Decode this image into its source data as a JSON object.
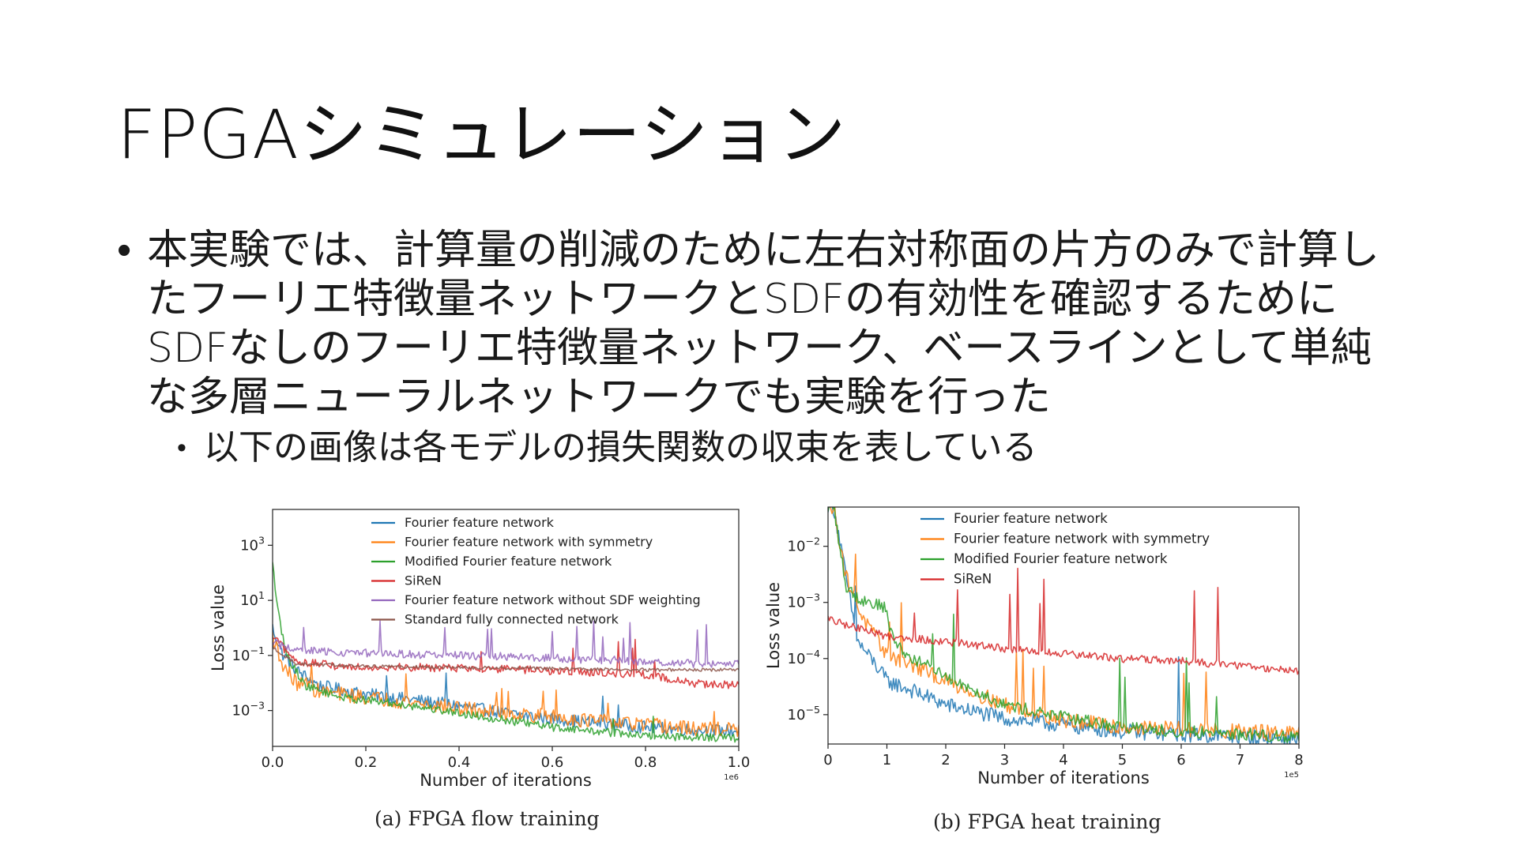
{
  "slide": {
    "title": "FPGAシミュレーション",
    "bullet_main": "本実験では、計算量の削減のために左右対称面の片方のみで計算したフーリエ特徴量ネットワークとSDFの有効性を確認するためにSDFなしのフーリエ特徴量ネットワーク、ベースラインとして単純な多層ニューラルネットワークでも実験を行った",
    "bullet_sub": "以下の画像は各モデルの損失関数の収束を表している",
    "bullet_glyph": "•"
  },
  "chart_data": [
    {
      "type": "line",
      "caption": "(a) FPGA flow training",
      "xlabel": "Number of iterations",
      "ylabel": "Loss value",
      "x_offset_text": "1e6",
      "yscale": "log",
      "xlim": [
        0,
        1.0
      ],
      "ylim": [
        5e-05,
        20000
      ],
      "xticks": [
        0.0,
        0.2,
        0.4,
        0.6,
        0.8,
        1.0
      ],
      "xtick_labels": [
        "0.0",
        "0.2",
        "0.4",
        "0.6",
        "0.8",
        "1.0"
      ],
      "yticks": [
        0.001,
        0.1,
        10,
        1000
      ],
      "ytick_labels": [
        [
          "10",
          "−3"
        ],
        [
          "10",
          "−1"
        ],
        [
          "10",
          "1"
        ],
        [
          "10",
          "3"
        ]
      ],
      "legend_position": "top-right",
      "grid": false,
      "series": [
        {
          "name": "Fourier feature network",
          "color": "#1f77b4",
          "points": [
            [
              0.0,
              1.0
            ],
            [
              0.02,
              0.12
            ],
            [
              0.05,
              0.03
            ],
            [
              0.1,
              0.008
            ],
            [
              0.2,
              0.004
            ],
            [
              0.3,
              0.0025
            ],
            [
              0.4,
              0.0015
            ],
            [
              0.5,
              0.0008
            ],
            [
              0.6,
              0.0005
            ],
            [
              0.7,
              0.00035
            ],
            [
              0.8,
              0.00025
            ],
            [
              0.9,
              0.0002
            ],
            [
              1.0,
              0.00018
            ]
          ],
          "noise": 0.45,
          "spikes": 4
        },
        {
          "name": "Fourier feature network with symmetry",
          "color": "#ff7f0e",
          "points": [
            [
              0.0,
              0.5
            ],
            [
              0.02,
              0.05
            ],
            [
              0.05,
              0.01
            ],
            [
              0.1,
              0.005
            ],
            [
              0.2,
              0.003
            ],
            [
              0.3,
              0.002
            ],
            [
              0.4,
              0.0012
            ],
            [
              0.5,
              0.0008
            ],
            [
              0.6,
              0.0006
            ],
            [
              0.7,
              0.0004
            ],
            [
              0.8,
              0.0003
            ],
            [
              0.9,
              0.00022
            ],
            [
              1.0,
              0.0002
            ]
          ],
          "noise": 0.55,
          "spikes": 10
        },
        {
          "name": "Modified Fourier feature network",
          "color": "#2ca02c",
          "points": [
            [
              0.0,
              300
            ],
            [
              0.01,
              5
            ],
            [
              0.03,
              0.1
            ],
            [
              0.07,
              0.008
            ],
            [
              0.15,
              0.003
            ],
            [
              0.3,
              0.0015
            ],
            [
              0.45,
              0.0006
            ],
            [
              0.6,
              0.00025
            ],
            [
              0.8,
              0.00012
            ],
            [
              1.0,
              0.0001
            ]
          ],
          "noise": 0.3,
          "spikes": 2
        },
        {
          "name": "SiReN",
          "color": "#d62728",
          "points": [
            [
              0.0,
              0.5
            ],
            [
              0.05,
              0.06
            ],
            [
              0.15,
              0.04
            ],
            [
              0.4,
              0.035
            ],
            [
              0.6,
              0.028
            ],
            [
              0.8,
              0.02
            ],
            [
              0.9,
              0.01
            ],
            [
              1.0,
              0.008
            ]
          ],
          "noise": 0.3,
          "spikes": 6
        },
        {
          "name": "Fourier feature network without SDF weighting",
          "color": "#9467bd",
          "points": [
            [
              0.0,
              0.3
            ],
            [
              0.05,
              0.15
            ],
            [
              0.2,
              0.12
            ],
            [
              0.5,
              0.09
            ],
            [
              0.7,
              0.07
            ],
            [
              0.9,
              0.05
            ],
            [
              1.0,
              0.05
            ]
          ],
          "noise": 0.3,
          "spikes": 14
        },
        {
          "name": "Standard fully connected network",
          "color": "#8c564b",
          "points": [
            [
              0.0,
              0.2
            ],
            [
              0.05,
              0.05
            ],
            [
              0.2,
              0.04
            ],
            [
              0.5,
              0.035
            ],
            [
              0.8,
              0.03
            ],
            [
              1.0,
              0.03
            ]
          ],
          "noise": 0.12,
          "spikes": 0
        }
      ]
    },
    {
      "type": "line",
      "caption": "(b) FPGA heat training",
      "xlabel": "Number of iterations",
      "ylabel": "Loss value",
      "x_offset_text": "1e5",
      "yscale": "log",
      "xlim": [
        0,
        8
      ],
      "ylim": [
        3e-06,
        0.05
      ],
      "xticks": [
        0,
        1,
        2,
        3,
        4,
        5,
        6,
        7,
        8
      ],
      "xtick_labels": [
        "0",
        "1",
        "2",
        "3",
        "4",
        "5",
        "6",
        "7",
        "8"
      ],
      "yticks": [
        1e-05,
        0.0001,
        0.001,
        0.01
      ],
      "ytick_labels": [
        [
          "10",
          "−5"
        ],
        [
          "10",
          "−4"
        ],
        [
          "10",
          "−3"
        ],
        [
          "10",
          "−2"
        ]
      ],
      "legend_position": "top-right",
      "grid": false,
      "series": [
        {
          "name": "Fourier feature network",
          "color": "#1f77b4",
          "points": [
            [
              0.1,
              0.05
            ],
            [
              0.3,
              0.003
            ],
            [
              0.5,
              0.0002
            ],
            [
              0.8,
              8e-05
            ],
            [
              1.0,
              4e-05
            ],
            [
              1.5,
              2.5e-05
            ],
            [
              2.0,
              1.5e-05
            ],
            [
              3.0,
              8.5e-06
            ],
            [
              4.0,
              6.5e-06
            ],
            [
              5.0,
              5e-06
            ],
            [
              6.0,
              4.5e-06
            ],
            [
              7.0,
              4e-06
            ],
            [
              8.0,
              3.8e-06
            ]
          ],
          "noise": 0.28,
          "spikes": 2
        },
        {
          "name": "Fourier feature network with symmetry",
          "color": "#ff7f0e",
          "points": [
            [
              0.1,
              0.05
            ],
            [
              0.3,
              0.003
            ],
            [
              0.6,
              0.0005
            ],
            [
              1.0,
              0.00012
            ],
            [
              1.5,
              7e-05
            ],
            [
              2.0,
              4e-05
            ],
            [
              3.0,
              1.5e-05
            ],
            [
              4.0,
              8e-06
            ],
            [
              5.0,
              6e-06
            ],
            [
              6.0,
              5.5e-06
            ],
            [
              7.0,
              5e-06
            ],
            [
              8.0,
              4.5e-06
            ]
          ],
          "noise": 0.28,
          "spikes": 9
        },
        {
          "name": "Modified Fourier feature network",
          "color": "#2ca02c",
          "points": [
            [
              0.1,
              0.05
            ],
            [
              0.3,
              0.002
            ],
            [
              0.5,
              0.0012
            ],
            [
              1.0,
              0.0008
            ],
            [
              1.05,
              0.0003
            ],
            [
              1.3,
              0.00012
            ],
            [
              2.0,
              5e-05
            ],
            [
              3.0,
              1.5e-05
            ],
            [
              4.0,
              9e-06
            ],
            [
              5.0,
              6e-06
            ],
            [
              6.0,
              5e-06
            ],
            [
              7.0,
              4.5e-06
            ],
            [
              8.0,
              4e-06
            ]
          ],
          "noise": 0.22,
          "spikes": 8
        },
        {
          "name": "SiReN",
          "color": "#d62728",
          "points": [
            [
              0.0,
              0.0005
            ],
            [
              0.5,
              0.00035
            ],
            [
              1.0,
              0.00025
            ],
            [
              2.0,
              0.0002
            ],
            [
              3.0,
              0.00015
            ],
            [
              4.0,
              0.00012
            ],
            [
              5.0,
              0.0001
            ],
            [
              6.0,
              9e-05
            ],
            [
              7.0,
              7.5e-05
            ],
            [
              8.0,
              6e-05
            ]
          ],
          "noise": 0.14,
          "spikes": 8
        }
      ]
    }
  ]
}
